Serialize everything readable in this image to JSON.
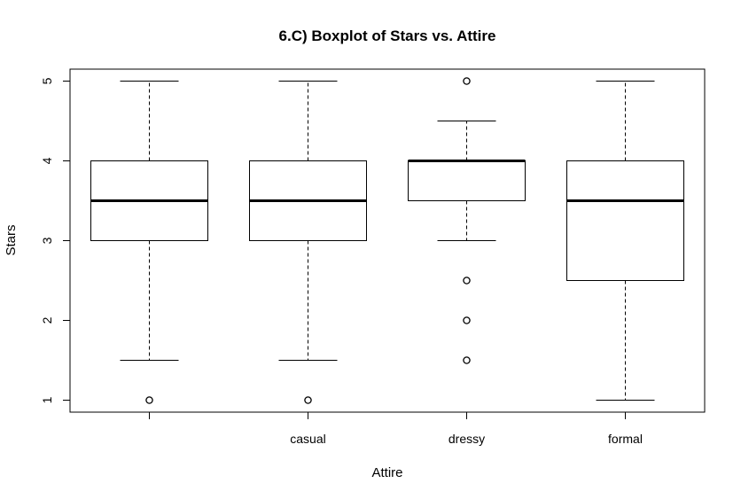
{
  "chart_data": {
    "type": "boxplot",
    "title": "6.C) Boxplot of Stars vs. Attire",
    "xlabel": "Attire",
    "ylabel": "Stars",
    "categories": [
      "",
      "casual",
      "dressy",
      "formal"
    ],
    "ylim": [
      0.85,
      5.15
    ],
    "yticks": [
      1,
      2,
      3,
      4,
      5
    ],
    "boxes": [
      {
        "category": "",
        "whisker_low": 1.5,
        "q1": 3.0,
        "median": 3.5,
        "q3": 4.0,
        "whisker_high": 5.0,
        "outliers": [
          1.0
        ]
      },
      {
        "category": "casual",
        "whisker_low": 1.5,
        "q1": 3.0,
        "median": 3.5,
        "q3": 4.0,
        "whisker_high": 5.0,
        "outliers": [
          1.0
        ]
      },
      {
        "category": "dressy",
        "whisker_low": 3.0,
        "q1": 3.5,
        "median": 4.0,
        "q3": 4.0,
        "whisker_high": 4.5,
        "outliers": [
          5.0,
          2.5,
          2.0,
          1.5
        ]
      },
      {
        "category": "formal",
        "whisker_low": 1.0,
        "q1": 2.5,
        "median": 3.5,
        "q3": 4.0,
        "whisker_high": 5.0,
        "outliers": []
      }
    ],
    "grid": false,
    "legend": "none"
  }
}
